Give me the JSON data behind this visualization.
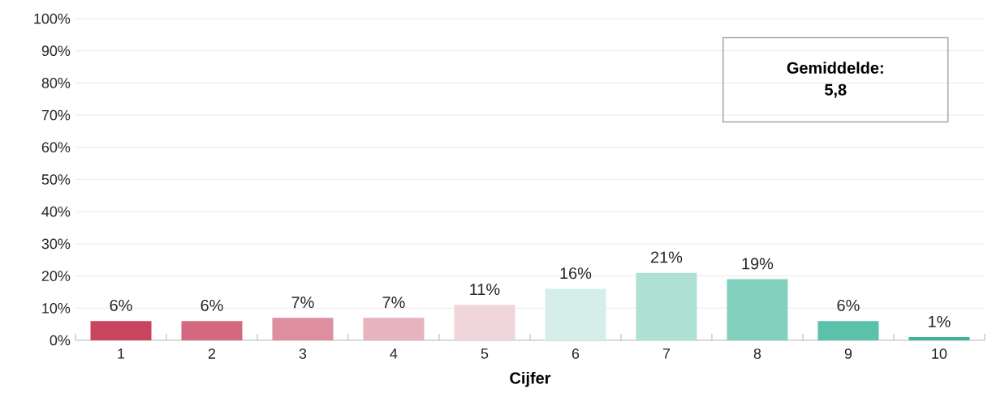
{
  "chart_data": {
    "type": "bar",
    "xlabel": "Cijfer",
    "categories": [
      "1",
      "2",
      "3",
      "4",
      "5",
      "6",
      "7",
      "8",
      "9",
      "10"
    ],
    "values": [
      6,
      6,
      7,
      7,
      11,
      16,
      21,
      19,
      6,
      1
    ],
    "value_labels": [
      "6%",
      "6%",
      "7%",
      "7%",
      "11%",
      "16%",
      "21%",
      "19%",
      "6%",
      "1%"
    ],
    "colors": [
      "#c9455f",
      "#d4687f",
      "#de8f9f",
      "#e6b3be",
      "#f0d5da",
      "#d5eee9",
      "#afe0d4",
      "#84d0bf",
      "#5cc1aa",
      "#3fb399"
    ],
    "ylim": [
      0,
      100
    ],
    "yticks": [
      {
        "value": 0,
        "label": "0%"
      },
      {
        "value": 10,
        "label": "10%"
      },
      {
        "value": 20,
        "label": "20%"
      },
      {
        "value": 30,
        "label": "30%"
      },
      {
        "value": 40,
        "label": "40%"
      },
      {
        "value": 50,
        "label": "50%"
      },
      {
        "value": 60,
        "label": "60%"
      },
      {
        "value": 70,
        "label": "70%"
      },
      {
        "value": 80,
        "label": "80%"
      },
      {
        "value": 90,
        "label": "90%"
      },
      {
        "value": 100,
        "label": "100%"
      }
    ],
    "grid": "y",
    "annotations": [
      "Gemiddelde: 5,8"
    ]
  }
}
